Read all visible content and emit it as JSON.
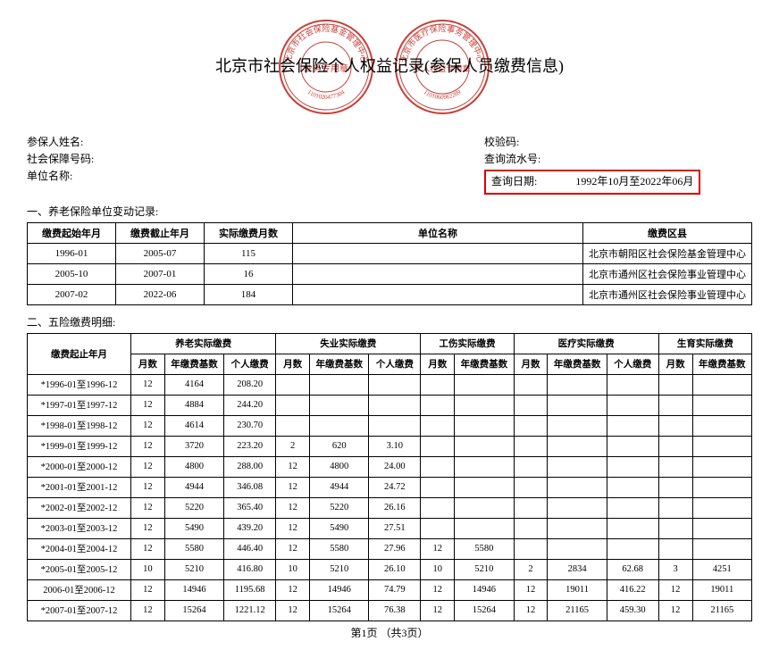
{
  "title": "北京市社会保险个人权益记录(参保人员缴费信息)",
  "seals": {
    "seal1_outer": "北京市社会保险基金管理中心",
    "seal1_inner": "业务专用章",
    "seal1_num": "1101020477304",
    "seal2_outer": "北京市医疗保险事务管理中心",
    "seal2_inner": "个人权益专用章",
    "seal2_num": "1101060962289",
    "color": "#c8403a"
  },
  "info": {
    "name_label": "参保人姓名:",
    "ssn_label": "社会保障号码:",
    "unit_label": "单位名称:",
    "verify_label": "校验码:",
    "serial_label": "查询流水号:",
    "query_date_label": "查询日期:",
    "query_date_value": "1992年10月至2022年06月"
  },
  "section1": {
    "title": "一、养老保险单位变动记录:",
    "headers": [
      "缴费起始年月",
      "缴费截止年月",
      "实际缴费月数",
      "单位名称",
      "缴费区县"
    ],
    "rows": [
      [
        "1996-01",
        "2005-07",
        "115",
        "",
        "北京市朝阳区社会保险基金管理中心"
      ],
      [
        "2005-10",
        "2007-01",
        "16",
        "",
        "北京市通州区社会保险事业管理中心"
      ],
      [
        "2007-02",
        "2022-06",
        "184",
        "",
        "北京市通州区社会保险事业管理中心"
      ]
    ]
  },
  "section2": {
    "title": "二、五险缴费明细:",
    "group_headers": [
      "养老实际缴费",
      "失业实际缴费",
      "工伤实际缴费",
      "医疗实际缴费",
      "生育实际缴费"
    ],
    "period_header": "缴费起止年月",
    "sub_headers": {
      "m": "月数",
      "base": "年缴费基数",
      "pay": "个人缴费"
    },
    "rows": [
      {
        "p": "*1996-01至1996-12",
        "yl": [
          "12",
          "4164",
          "208.20"
        ],
        "sy": [
          "",
          "",
          ""
        ],
        "gs": [
          "",
          ""
        ],
        "yil": [
          "",
          "",
          ""
        ],
        "sye": [
          "",
          ""
        ]
      },
      {
        "p": "*1997-01至1997-12",
        "yl": [
          "12",
          "4884",
          "244.20"
        ],
        "sy": [
          "",
          "",
          ""
        ],
        "gs": [
          "",
          ""
        ],
        "yil": [
          "",
          "",
          ""
        ],
        "sye": [
          "",
          ""
        ]
      },
      {
        "p": "*1998-01至1998-12",
        "yl": [
          "12",
          "4614",
          "230.70"
        ],
        "sy": [
          "",
          "",
          ""
        ],
        "gs": [
          "",
          ""
        ],
        "yil": [
          "",
          "",
          ""
        ],
        "sye": [
          "",
          ""
        ]
      },
      {
        "p": "*1999-01至1999-12",
        "yl": [
          "12",
          "3720",
          "223.20"
        ],
        "sy": [
          "2",
          "620",
          "3.10"
        ],
        "gs": [
          "",
          ""
        ],
        "yil": [
          "",
          "",
          ""
        ],
        "sye": [
          "",
          ""
        ]
      },
      {
        "p": "*2000-01至2000-12",
        "yl": [
          "12",
          "4800",
          "288.00"
        ],
        "sy": [
          "12",
          "4800",
          "24.00"
        ],
        "gs": [
          "",
          ""
        ],
        "yil": [
          "",
          "",
          ""
        ],
        "sye": [
          "",
          ""
        ]
      },
      {
        "p": "*2001-01至2001-12",
        "yl": [
          "12",
          "4944",
          "346.08"
        ],
        "sy": [
          "12",
          "4944",
          "24.72"
        ],
        "gs": [
          "",
          ""
        ],
        "yil": [
          "",
          "",
          ""
        ],
        "sye": [
          "",
          ""
        ]
      },
      {
        "p": "*2002-01至2002-12",
        "yl": [
          "12",
          "5220",
          "365.40"
        ],
        "sy": [
          "12",
          "5220",
          "26.16"
        ],
        "gs": [
          "",
          ""
        ],
        "yil": [
          "",
          "",
          ""
        ],
        "sye": [
          "",
          ""
        ]
      },
      {
        "p": "*2003-01至2003-12",
        "yl": [
          "12",
          "5490",
          "439.20"
        ],
        "sy": [
          "12",
          "5490",
          "27.51"
        ],
        "gs": [
          "",
          ""
        ],
        "yil": [
          "",
          "",
          ""
        ],
        "sye": [
          "",
          ""
        ]
      },
      {
        "p": "*2004-01至2004-12",
        "yl": [
          "12",
          "5580",
          "446.40"
        ],
        "sy": [
          "12",
          "5580",
          "27.96"
        ],
        "gs": [
          "12",
          "5580"
        ],
        "yil": [
          "",
          "",
          ""
        ],
        "sye": [
          "",
          ""
        ]
      },
      {
        "p": "*2005-01至2005-12",
        "yl": [
          "10",
          "5210",
          "416.80"
        ],
        "sy": [
          "10",
          "5210",
          "26.10"
        ],
        "gs": [
          "10",
          "5210"
        ],
        "yil": [
          "2",
          "2834",
          "62.68"
        ],
        "sye": [
          "3",
          "4251"
        ]
      },
      {
        "p": "2006-01至2006-12",
        "yl": [
          "12",
          "14946",
          "1195.68"
        ],
        "sy": [
          "12",
          "14946",
          "74.79"
        ],
        "gs": [
          "12",
          "14946"
        ],
        "yil": [
          "12",
          "19011",
          "416.22"
        ],
        "sye": [
          "12",
          "19011"
        ]
      },
      {
        "p": "*2007-01至2007-12",
        "yl": [
          "12",
          "15264",
          "1221.12"
        ],
        "sy": [
          "12",
          "15264",
          "76.38"
        ],
        "gs": [
          "12",
          "15264"
        ],
        "yil": [
          "12",
          "21165",
          "459.30"
        ],
        "sye": [
          "12",
          "21165"
        ]
      }
    ]
  },
  "footer": "第1页 （共3页）"
}
